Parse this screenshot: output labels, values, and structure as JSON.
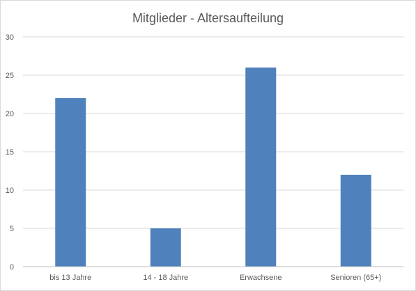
{
  "chart_data": {
    "type": "bar",
    "title": "Mitglieder - Altersaufteilung",
    "categories": [
      "bis 13 Jahre",
      "14 - 18 Jahre",
      "Erwachsene",
      "Senioren (65+)"
    ],
    "values": [
      22,
      5,
      26,
      12
    ],
    "ylim": [
      0,
      30
    ],
    "yticks": [
      0,
      5,
      10,
      15,
      20,
      25,
      30
    ],
    "grid": true,
    "bar_color": "#4f81bd",
    "grid_color": "#d9d9d9",
    "text_color": "#595959"
  }
}
